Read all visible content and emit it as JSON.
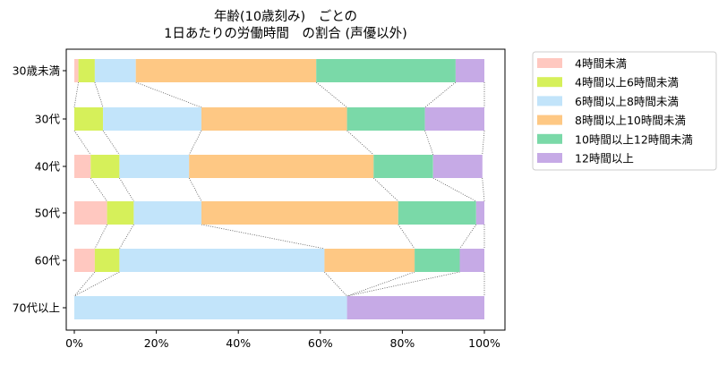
{
  "chart_data": {
    "type": "bar",
    "orientation": "horizontal",
    "stacked": true,
    "normalized": true,
    "title": [
      "年齢(10歳刻み)　ごとの",
      "1日あたりの労働時間　の割合 (声優以外)"
    ],
    "categories": [
      "30歳未満",
      "30代",
      "40代",
      "50代",
      "60代",
      "70代以上"
    ],
    "series": [
      {
        "name": "4時間未満",
        "color": "#ffc8c0",
        "values": [
          0.01,
          0.0,
          0.04,
          0.08,
          0.05,
          0.0
        ]
      },
      {
        "name": "4時間以上6時間未満",
        "color": "#d6f05a",
        "values": [
          0.04,
          0.07,
          0.07,
          0.065,
          0.06,
          0.0
        ]
      },
      {
        "name": "6時間以上8時間未満",
        "color": "#c2e4fa",
        "values": [
          0.1,
          0.24,
          0.17,
          0.165,
          0.5,
          0.665
        ]
      },
      {
        "name": "8時間以上10時間未満",
        "color": "#fec884",
        "values": [
          0.44,
          0.355,
          0.45,
          0.48,
          0.22,
          0.0
        ]
      },
      {
        "name": "10時間以上12時間未満",
        "color": "#7ad9a8",
        "values": [
          0.34,
          0.19,
          0.145,
          0.19,
          0.11,
          0.0
        ]
      },
      {
        "name": "12時間以上",
        "color": "#c6aae6",
        "values": [
          0.07,
          0.145,
          0.12,
          0.02,
          0.06,
          0.335
        ]
      }
    ],
    "xlim": [
      0,
      1
    ],
    "xticks": [
      "0%",
      "20%",
      "40%",
      "60%",
      "80%",
      "100%"
    ],
    "grid": false,
    "legend_position": "outside-right-top",
    "connector_lines": "dotted lines join series boundaries of adjacent bars"
  }
}
